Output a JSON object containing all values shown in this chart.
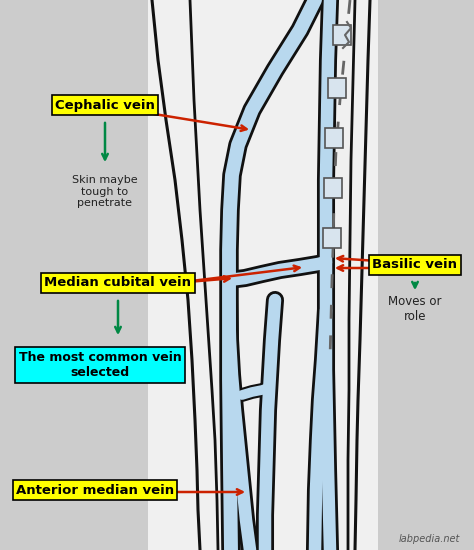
{
  "bg_color": "#cccccc",
  "arm_bg_color": "#f5f5f5",
  "vein_fill": "#b8d8ee",
  "vein_outline": "#111111",
  "labels": {
    "cephalic_vein": "Cephalic vein",
    "skin_note": "Skin maybe\ntough to\npenetrate",
    "basilic_vein": "Basilic vein",
    "median_cubital": "Median cubital vein",
    "most_common": "The most common vein\nselected",
    "anterior_median": "Anterior median vein",
    "moves_or_role": "Moves or\nrole",
    "watermark": "labpedia.net"
  },
  "label_colors": {
    "yellow_bg": "#ffff00",
    "cyan_bg": "#00ffff",
    "text_dark": "#000000",
    "arrow_red": "#cc2200",
    "arrow_green": "#008844"
  }
}
